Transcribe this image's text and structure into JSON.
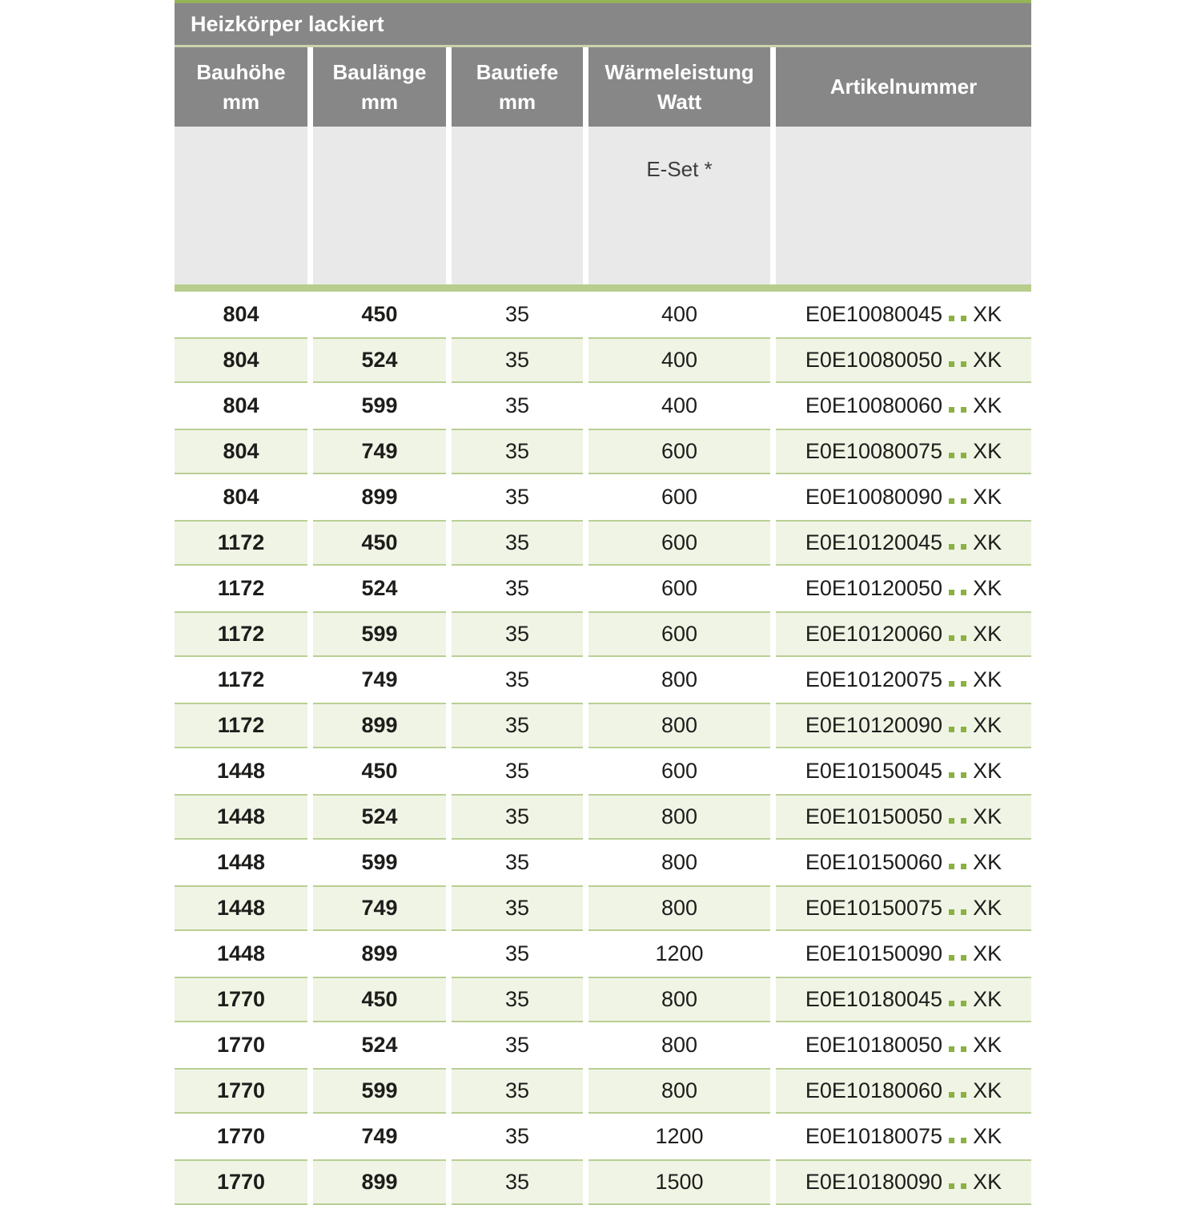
{
  "table": {
    "title": "Heizkörper lackiert",
    "columns": [
      {
        "label": "Bauhöhe",
        "unit": "mm"
      },
      {
        "label": "Baulänge",
        "unit": "mm"
      },
      {
        "label": "Bautiefe",
        "unit": "mm"
      },
      {
        "label": "Wärmeleistung",
        "unit": "Watt"
      },
      {
        "label": "Artikelnummer",
        "unit": ""
      }
    ],
    "subheader": {
      "eset_label": "E-Set *"
    },
    "rows": [
      {
        "bauhoehe": "804",
        "baulaenge": "450",
        "bautiefe": "35",
        "watt": "400",
        "artikel_prefix": "E0E10080045",
        "artikel_suffix": "XK"
      },
      {
        "bauhoehe": "804",
        "baulaenge": "524",
        "bautiefe": "35",
        "watt": "400",
        "artikel_prefix": "E0E10080050",
        "artikel_suffix": "XK"
      },
      {
        "bauhoehe": "804",
        "baulaenge": "599",
        "bautiefe": "35",
        "watt": "400",
        "artikel_prefix": "E0E10080060",
        "artikel_suffix": "XK"
      },
      {
        "bauhoehe": "804",
        "baulaenge": "749",
        "bautiefe": "35",
        "watt": "600",
        "artikel_prefix": "E0E10080075",
        "artikel_suffix": "XK"
      },
      {
        "bauhoehe": "804",
        "baulaenge": "899",
        "bautiefe": "35",
        "watt": "600",
        "artikel_prefix": "E0E10080090",
        "artikel_suffix": "XK"
      },
      {
        "bauhoehe": "1172",
        "baulaenge": "450",
        "bautiefe": "35",
        "watt": "600",
        "artikel_prefix": "E0E10120045",
        "artikel_suffix": "XK"
      },
      {
        "bauhoehe": "1172",
        "baulaenge": "524",
        "bautiefe": "35",
        "watt": "600",
        "artikel_prefix": "E0E10120050",
        "artikel_suffix": "XK"
      },
      {
        "bauhoehe": "1172",
        "baulaenge": "599",
        "bautiefe": "35",
        "watt": "600",
        "artikel_prefix": "E0E10120060",
        "artikel_suffix": "XK"
      },
      {
        "bauhoehe": "1172",
        "baulaenge": "749",
        "bautiefe": "35",
        "watt": "800",
        "artikel_prefix": "E0E10120075",
        "artikel_suffix": "XK"
      },
      {
        "bauhoehe": "1172",
        "baulaenge": "899",
        "bautiefe": "35",
        "watt": "800",
        "artikel_prefix": "E0E10120090",
        "artikel_suffix": "XK"
      },
      {
        "bauhoehe": "1448",
        "baulaenge": "450",
        "bautiefe": "35",
        "watt": "600",
        "artikel_prefix": "E0E10150045",
        "artikel_suffix": "XK"
      },
      {
        "bauhoehe": "1448",
        "baulaenge": "524",
        "bautiefe": "35",
        "watt": "800",
        "artikel_prefix": "E0E10150050",
        "artikel_suffix": "XK"
      },
      {
        "bauhoehe": "1448",
        "baulaenge": "599",
        "bautiefe": "35",
        "watt": "800",
        "artikel_prefix": "E0E10150060",
        "artikel_suffix": "XK"
      },
      {
        "bauhoehe": "1448",
        "baulaenge": "749",
        "bautiefe": "35",
        "watt": "800",
        "artikel_prefix": "E0E10150075",
        "artikel_suffix": "XK"
      },
      {
        "bauhoehe": "1448",
        "baulaenge": "899",
        "bautiefe": "35",
        "watt": "1200",
        "artikel_prefix": "E0E10150090",
        "artikel_suffix": "XK"
      },
      {
        "bauhoehe": "1770",
        "baulaenge": "450",
        "bautiefe": "35",
        "watt": "800",
        "artikel_prefix": "E0E10180045",
        "artikel_suffix": "XK"
      },
      {
        "bauhoehe": "1770",
        "baulaenge": "524",
        "bautiefe": "35",
        "watt": "800",
        "artikel_prefix": "E0E10180050",
        "artikel_suffix": "XK"
      },
      {
        "bauhoehe": "1770",
        "baulaenge": "599",
        "bautiefe": "35",
        "watt": "800",
        "artikel_prefix": "E0E10180060",
        "artikel_suffix": "XK"
      },
      {
        "bauhoehe": "1770",
        "baulaenge": "749",
        "bautiefe": "35",
        "watt": "1200",
        "artikel_prefix": "E0E10180075",
        "artikel_suffix": "XK"
      },
      {
        "bauhoehe": "1770",
        "baulaenge": "899",
        "bautiefe": "35",
        "watt": "1500",
        "artikel_prefix": "E0E10180090",
        "artikel_suffix": "XK"
      }
    ]
  },
  "colors": {
    "header_gray": "#878787",
    "subheader_gray": "#e9e9e9",
    "accent_green": "#94b457",
    "pale_line_green": "#cad3aa",
    "separator_green": "#b7cd8e",
    "row_green_bg": "#f0f4e5",
    "row_green_border": "#b9cf93",
    "dot_green": "#8ab142"
  }
}
